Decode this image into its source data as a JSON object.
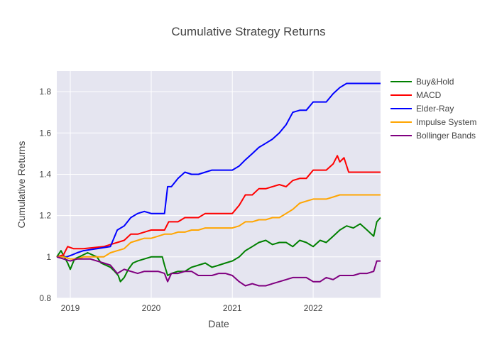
{
  "chart_data": {
    "type": "line",
    "title": "Cumulative Strategy Returns",
    "xlabel": "Date",
    "ylabel": "Cumulative Returns",
    "xlim": [
      "2018-11-01",
      "2022-11-01"
    ],
    "ylim": [
      0.8,
      1.9
    ],
    "x_ticks": [
      "2019-01-01",
      "2020-01-01",
      "2021-01-01",
      "2022-01-01"
    ],
    "x_tick_labels": [
      "2019",
      "2020",
      "2021",
      "2022"
    ],
    "y_ticks": [
      0.8,
      1.0,
      1.2,
      1.4,
      1.6,
      1.8
    ],
    "y_tick_labels": [
      "0.8",
      "1",
      "1.2",
      "1.4",
      "1.6",
      "1.8"
    ],
    "grid": true,
    "legend_position": "right",
    "background": "#e5e5f0",
    "series": [
      {
        "name": "Buy&Hold",
        "color": "#008000",
        "points": [
          [
            "2018-11-01",
            1.0
          ],
          [
            "2018-11-20",
            1.03
          ],
          [
            "2018-12-05",
            1.0
          ],
          [
            "2018-12-20",
            0.97
          ],
          [
            "2019-01-01",
            0.94
          ],
          [
            "2019-01-20",
            0.99
          ],
          [
            "2019-02-10",
            1.0
          ],
          [
            "2019-03-01",
            1.01
          ],
          [
            "2019-03-20",
            1.02
          ],
          [
            "2019-04-10",
            1.01
          ],
          [
            "2019-05-01",
            1.0
          ],
          [
            "2019-05-20",
            0.97
          ],
          [
            "2019-06-10",
            0.96
          ],
          [
            "2019-07-01",
            0.95
          ],
          [
            "2019-07-20",
            0.93
          ],
          [
            "2019-08-05",
            0.91
          ],
          [
            "2019-08-15",
            0.88
          ],
          [
            "2019-09-01",
            0.9
          ],
          [
            "2019-09-20",
            0.94
          ],
          [
            "2019-10-10",
            0.97
          ],
          [
            "2019-11-01",
            0.98
          ],
          [
            "2019-12-01",
            0.99
          ],
          [
            "2020-01-01",
            1.0
          ],
          [
            "2020-01-20",
            1.0
          ],
          [
            "2020-02-20",
            1.0
          ],
          [
            "2020-03-01",
            0.96
          ],
          [
            "2020-03-15",
            0.91
          ],
          [
            "2020-04-01",
            0.92
          ],
          [
            "2020-05-01",
            0.93
          ],
          [
            "2020-06-01",
            0.93
          ],
          [
            "2020-07-01",
            0.95
          ],
          [
            "2020-08-01",
            0.96
          ],
          [
            "2020-09-01",
            0.97
          ],
          [
            "2020-10-01",
            0.95
          ],
          [
            "2020-11-01",
            0.96
          ],
          [
            "2020-12-01",
            0.97
          ],
          [
            "2021-01-01",
            0.98
          ],
          [
            "2021-02-01",
            1.0
          ],
          [
            "2021-03-01",
            1.03
          ],
          [
            "2021-04-01",
            1.05
          ],
          [
            "2021-05-01",
            1.07
          ],
          [
            "2021-06-01",
            1.08
          ],
          [
            "2021-07-01",
            1.06
          ],
          [
            "2021-08-01",
            1.07
          ],
          [
            "2021-09-01",
            1.07
          ],
          [
            "2021-10-01",
            1.05
          ],
          [
            "2021-11-01",
            1.08
          ],
          [
            "2021-12-01",
            1.07
          ],
          [
            "2022-01-01",
            1.05
          ],
          [
            "2022-02-01",
            1.08
          ],
          [
            "2022-03-01",
            1.07
          ],
          [
            "2022-04-01",
            1.1
          ],
          [
            "2022-05-01",
            1.13
          ],
          [
            "2022-06-01",
            1.15
          ],
          [
            "2022-07-01",
            1.14
          ],
          [
            "2022-08-01",
            1.16
          ],
          [
            "2022-09-01",
            1.13
          ],
          [
            "2022-10-01",
            1.1
          ],
          [
            "2022-10-15",
            1.17
          ],
          [
            "2022-11-01",
            1.19
          ]
        ]
      },
      {
        "name": "MACD",
        "color": "#ff0000",
        "points": [
          [
            "2018-11-01",
            1.0
          ],
          [
            "2018-12-01",
            1.01
          ],
          [
            "2018-12-20",
            1.05
          ],
          [
            "2019-01-15",
            1.04
          ],
          [
            "2019-03-01",
            1.04
          ],
          [
            "2019-06-01",
            1.05
          ],
          [
            "2019-07-01",
            1.06
          ],
          [
            "2019-08-01",
            1.07
          ],
          [
            "2019-09-01",
            1.08
          ],
          [
            "2019-10-01",
            1.11
          ],
          [
            "2019-11-01",
            1.11
          ],
          [
            "2019-12-01",
            1.12
          ],
          [
            "2020-01-01",
            1.13
          ],
          [
            "2020-02-01",
            1.13
          ],
          [
            "2020-03-01",
            1.13
          ],
          [
            "2020-03-20",
            1.17
          ],
          [
            "2020-05-01",
            1.17
          ],
          [
            "2020-06-01",
            1.19
          ],
          [
            "2020-07-01",
            1.19
          ],
          [
            "2020-08-01",
            1.19
          ],
          [
            "2020-09-01",
            1.21
          ],
          [
            "2020-10-01",
            1.21
          ],
          [
            "2020-12-01",
            1.21
          ],
          [
            "2021-01-01",
            1.21
          ],
          [
            "2021-02-01",
            1.25
          ],
          [
            "2021-03-01",
            1.3
          ],
          [
            "2021-04-01",
            1.3
          ],
          [
            "2021-05-01",
            1.33
          ],
          [
            "2021-06-01",
            1.33
          ],
          [
            "2021-07-01",
            1.34
          ],
          [
            "2021-08-01",
            1.35
          ],
          [
            "2021-09-01",
            1.34
          ],
          [
            "2021-10-01",
            1.37
          ],
          [
            "2021-11-01",
            1.38
          ],
          [
            "2021-12-01",
            1.38
          ],
          [
            "2022-01-01",
            1.42
          ],
          [
            "2022-02-01",
            1.42
          ],
          [
            "2022-03-01",
            1.42
          ],
          [
            "2022-04-01",
            1.45
          ],
          [
            "2022-04-20",
            1.49
          ],
          [
            "2022-05-01",
            1.46
          ],
          [
            "2022-05-20",
            1.48
          ],
          [
            "2022-06-10",
            1.41
          ],
          [
            "2022-07-01",
            1.41
          ],
          [
            "2022-11-01",
            1.41
          ]
        ]
      },
      {
        "name": "Elder-Ray",
        "color": "#0000ff",
        "points": [
          [
            "2018-11-01",
            1.0
          ],
          [
            "2018-12-15",
            1.0
          ],
          [
            "2019-01-10",
            1.01
          ],
          [
            "2019-02-01",
            1.02
          ],
          [
            "2019-03-01",
            1.03
          ],
          [
            "2019-05-01",
            1.04
          ],
          [
            "2019-07-01",
            1.05
          ],
          [
            "2019-08-01",
            1.13
          ],
          [
            "2019-09-01",
            1.15
          ],
          [
            "2019-10-01",
            1.19
          ],
          [
            "2019-11-01",
            1.21
          ],
          [
            "2019-12-01",
            1.22
          ],
          [
            "2020-01-01",
            1.21
          ],
          [
            "2020-02-01",
            1.21
          ],
          [
            "2020-03-01",
            1.21
          ],
          [
            "2020-03-15",
            1.34
          ],
          [
            "2020-04-01",
            1.34
          ],
          [
            "2020-05-01",
            1.38
          ],
          [
            "2020-06-01",
            1.41
          ],
          [
            "2020-07-01",
            1.4
          ],
          [
            "2020-08-01",
            1.4
          ],
          [
            "2020-09-01",
            1.41
          ],
          [
            "2020-10-01",
            1.42
          ],
          [
            "2020-11-01",
            1.42
          ],
          [
            "2020-12-01",
            1.42
          ],
          [
            "2021-01-01",
            1.42
          ],
          [
            "2021-02-01",
            1.44
          ],
          [
            "2021-03-01",
            1.47
          ],
          [
            "2021-04-01",
            1.5
          ],
          [
            "2021-05-01",
            1.53
          ],
          [
            "2021-06-01",
            1.55
          ],
          [
            "2021-07-01",
            1.57
          ],
          [
            "2021-08-01",
            1.6
          ],
          [
            "2021-09-01",
            1.64
          ],
          [
            "2021-10-01",
            1.7
          ],
          [
            "2021-11-01",
            1.71
          ],
          [
            "2021-12-01",
            1.71
          ],
          [
            "2022-01-01",
            1.75
          ],
          [
            "2022-02-01",
            1.75
          ],
          [
            "2022-03-01",
            1.75
          ],
          [
            "2022-04-01",
            1.79
          ],
          [
            "2022-05-01",
            1.82
          ],
          [
            "2022-06-01",
            1.84
          ],
          [
            "2022-11-01",
            1.84
          ]
        ]
      },
      {
        "name": "Impulse System",
        "color": "#ffa500",
        "points": [
          [
            "2018-11-01",
            1.0
          ],
          [
            "2018-12-01",
            1.0
          ],
          [
            "2019-01-01",
            0.99
          ],
          [
            "2019-02-01",
            0.99
          ],
          [
            "2019-03-01",
            1.0
          ],
          [
            "2019-05-01",
            1.0
          ],
          [
            "2019-06-01",
            1.0
          ],
          [
            "2019-07-01",
            1.02
          ],
          [
            "2019-08-01",
            1.03
          ],
          [
            "2019-09-01",
            1.04
          ],
          [
            "2019-10-01",
            1.07
          ],
          [
            "2019-11-01",
            1.08
          ],
          [
            "2019-12-01",
            1.09
          ],
          [
            "2020-01-01",
            1.09
          ],
          [
            "2020-02-01",
            1.1
          ],
          [
            "2020-03-01",
            1.11
          ],
          [
            "2020-04-01",
            1.11
          ],
          [
            "2020-05-01",
            1.12
          ],
          [
            "2020-06-01",
            1.12
          ],
          [
            "2020-07-01",
            1.13
          ],
          [
            "2020-08-01",
            1.13
          ],
          [
            "2020-09-01",
            1.14
          ],
          [
            "2020-10-01",
            1.14
          ],
          [
            "2020-12-01",
            1.14
          ],
          [
            "2021-01-01",
            1.14
          ],
          [
            "2021-02-01",
            1.15
          ],
          [
            "2021-03-01",
            1.17
          ],
          [
            "2021-04-01",
            1.17
          ],
          [
            "2021-05-01",
            1.18
          ],
          [
            "2021-06-01",
            1.18
          ],
          [
            "2021-07-01",
            1.19
          ],
          [
            "2021-08-01",
            1.19
          ],
          [
            "2021-09-01",
            1.21
          ],
          [
            "2021-10-01",
            1.23
          ],
          [
            "2021-11-01",
            1.26
          ],
          [
            "2021-12-01",
            1.27
          ],
          [
            "2022-01-01",
            1.28
          ],
          [
            "2022-02-01",
            1.28
          ],
          [
            "2022-03-01",
            1.28
          ],
          [
            "2022-04-01",
            1.29
          ],
          [
            "2022-05-01",
            1.3
          ],
          [
            "2022-06-01",
            1.3
          ],
          [
            "2022-11-01",
            1.3
          ]
        ]
      },
      {
        "name": "Bollinger Bands",
        "color": "#800080",
        "points": [
          [
            "2018-11-01",
            1.0
          ],
          [
            "2018-12-01",
            0.99
          ],
          [
            "2019-01-01",
            0.98
          ],
          [
            "2019-02-01",
            0.99
          ],
          [
            "2019-03-01",
            0.99
          ],
          [
            "2019-04-01",
            0.99
          ],
          [
            "2019-05-01",
            0.98
          ],
          [
            "2019-06-01",
            0.97
          ],
          [
            "2019-07-01",
            0.96
          ],
          [
            "2019-08-01",
            0.92
          ],
          [
            "2019-09-01",
            0.94
          ],
          [
            "2019-10-01",
            0.93
          ],
          [
            "2019-11-01",
            0.92
          ],
          [
            "2019-12-01",
            0.93
          ],
          [
            "2020-01-01",
            0.93
          ],
          [
            "2020-02-01",
            0.93
          ],
          [
            "2020-03-01",
            0.92
          ],
          [
            "2020-03-15",
            0.88
          ],
          [
            "2020-04-01",
            0.92
          ],
          [
            "2020-05-01",
            0.92
          ],
          [
            "2020-06-01",
            0.93
          ],
          [
            "2020-07-01",
            0.93
          ],
          [
            "2020-08-01",
            0.91
          ],
          [
            "2020-09-01",
            0.91
          ],
          [
            "2020-10-01",
            0.91
          ],
          [
            "2020-11-01",
            0.92
          ],
          [
            "2020-12-01",
            0.92
          ],
          [
            "2021-01-01",
            0.91
          ],
          [
            "2021-02-01",
            0.88
          ],
          [
            "2021-03-01",
            0.86
          ],
          [
            "2021-04-01",
            0.87
          ],
          [
            "2021-05-01",
            0.86
          ],
          [
            "2021-06-01",
            0.86
          ],
          [
            "2021-07-01",
            0.87
          ],
          [
            "2021-08-01",
            0.88
          ],
          [
            "2021-09-01",
            0.89
          ],
          [
            "2021-10-01",
            0.9
          ],
          [
            "2021-11-01",
            0.9
          ],
          [
            "2021-12-01",
            0.9
          ],
          [
            "2022-01-01",
            0.88
          ],
          [
            "2022-02-01",
            0.88
          ],
          [
            "2022-03-01",
            0.9
          ],
          [
            "2022-04-01",
            0.89
          ],
          [
            "2022-05-01",
            0.91
          ],
          [
            "2022-06-01",
            0.91
          ],
          [
            "2022-07-01",
            0.91
          ],
          [
            "2022-08-01",
            0.92
          ],
          [
            "2022-09-01",
            0.92
          ],
          [
            "2022-10-01",
            0.93
          ],
          [
            "2022-10-15",
            0.98
          ],
          [
            "2022-11-01",
            0.98
          ]
        ]
      }
    ]
  }
}
